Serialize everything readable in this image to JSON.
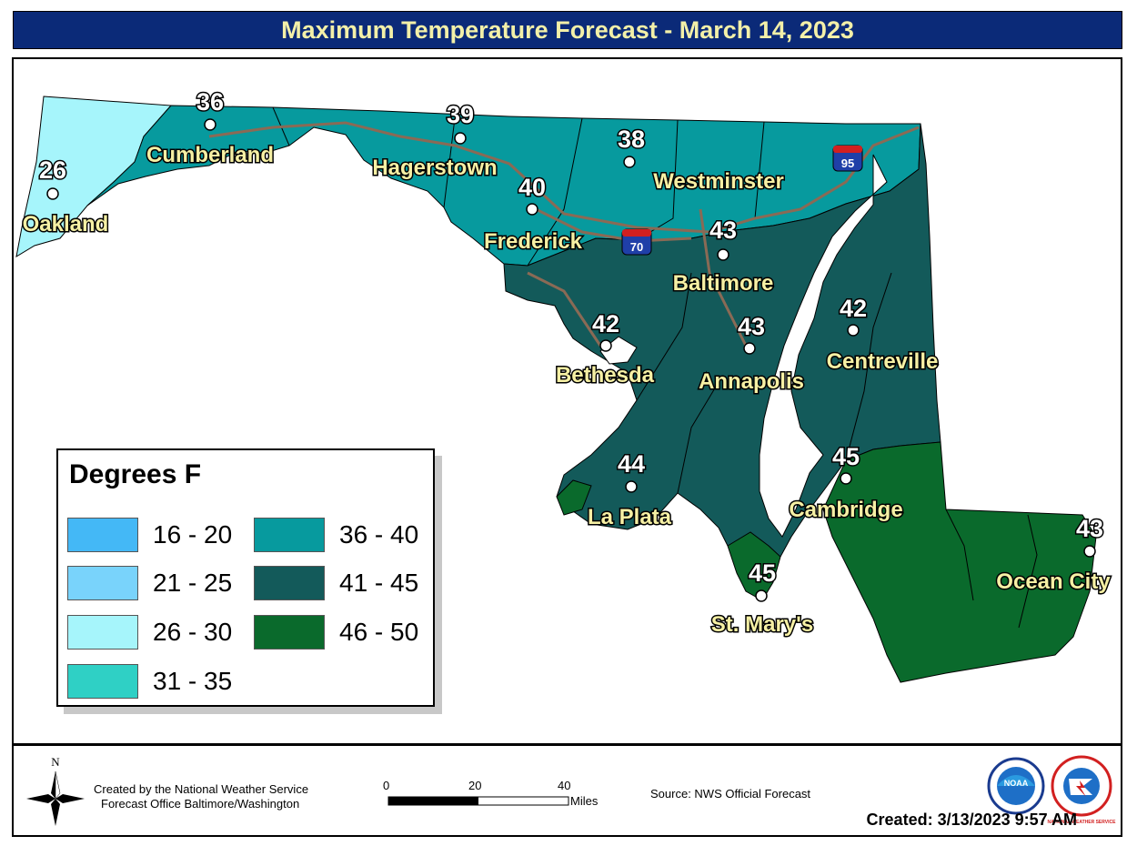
{
  "title": "Maximum Temperature Forecast - March 14, 2023",
  "legend": {
    "title": "Degrees F",
    "items": [
      {
        "range": "16 - 20",
        "color": "#44b8f6"
      },
      {
        "range": "21 - 25",
        "color": "#79d3fb"
      },
      {
        "range": "26 - 30",
        "color": "#a6f5fb"
      },
      {
        "range": "31 - 35",
        "color": "#2fd0c5"
      },
      {
        "range": "36 - 40",
        "color": "#079a9e"
      },
      {
        "range": "41 - 45",
        "color": "#135a5a"
      },
      {
        "range": "46 - 50",
        "color": "#0a6a2c"
      }
    ]
  },
  "cities": {
    "oakland": {
      "name": "Oakland",
      "temp": "26"
    },
    "cumberland": {
      "name": "Cumberland",
      "temp": "36"
    },
    "hagerstown": {
      "name": "Hagerstown",
      "temp": "39"
    },
    "frederick": {
      "name": "Frederick",
      "temp": "40"
    },
    "westminster": {
      "name": "Westminster",
      "temp": "38"
    },
    "baltimore": {
      "name": "Baltimore",
      "temp": "43"
    },
    "bethesda": {
      "name": "Bethesda",
      "temp": "42"
    },
    "annapolis": {
      "name": "Annapolis",
      "temp": "43"
    },
    "centreville": {
      "name": "Centreville",
      "temp": "42"
    },
    "cambridge": {
      "name": "Cambridge",
      "temp": "45"
    },
    "laplata": {
      "name": "La Plata",
      "temp": "44"
    },
    "stmarys": {
      "name": "St. Mary's",
      "temp": "45"
    },
    "oceancity": {
      "name": "Ocean City",
      "temp": "43"
    }
  },
  "highways": {
    "i95": "95",
    "i70": "70"
  },
  "footer": {
    "credit_line1": "Created by the National Weather Service",
    "credit_line2": "Forecast Office Baltimore/Washington",
    "north": "N",
    "scale_0": "0",
    "scale_20": "20",
    "scale_40": "40",
    "scale_unit": "Miles",
    "source": "Source: NWS Official Forecast",
    "created": "Created: 3/13/2023 9:57 AM",
    "noaa_logo_text": "NOAA",
    "nws_logo_text": "NATIONAL WEATHER SERVICE"
  }
}
